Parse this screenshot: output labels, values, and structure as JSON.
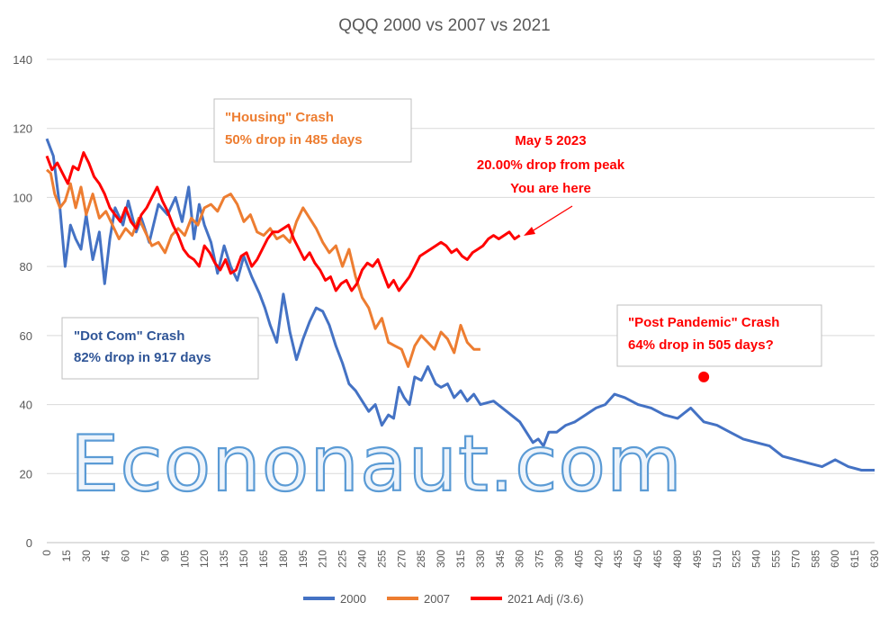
{
  "watermark": "Econonaut.com",
  "chart_data": {
    "type": "line",
    "title": "QQQ 2000 vs 2007 vs 2021",
    "xlabel": "",
    "ylabel": "",
    "xlim": [
      0,
      630
    ],
    "ylim": [
      0,
      140
    ],
    "yticks": [
      0,
      20,
      40,
      60,
      80,
      100,
      120,
      140
    ],
    "xticks": [
      0,
      15,
      30,
      45,
      60,
      75,
      90,
      105,
      120,
      135,
      150,
      165,
      180,
      195,
      210,
      225,
      240,
      255,
      270,
      285,
      300,
      315,
      330,
      345,
      360,
      375,
      390,
      405,
      420,
      435,
      450,
      465,
      480,
      495,
      510,
      525,
      540,
      555,
      570,
      585,
      600,
      615,
      630
    ],
    "grid": "horizontal",
    "legend": "bottom",
    "series": [
      {
        "name": "2000",
        "color": "#4472c4",
        "x": [
          0,
          5,
          10,
          14,
          18,
          22,
          26,
          30,
          35,
          40,
          44,
          48,
          52,
          58,
          62,
          68,
          72,
          78,
          85,
          92,
          98,
          103,
          108,
          112,
          116,
          120,
          125,
          130,
          135,
          140,
          145,
          150,
          156,
          162,
          166,
          170,
          175,
          180,
          185,
          190,
          195,
          200,
          205,
          210,
          215,
          220,
          225,
          230,
          235,
          240,
          245,
          250,
          255,
          260,
          264,
          268,
          272,
          276,
          280,
          285,
          290,
          296,
          300,
          305,
          310,
          315,
          320,
          325,
          330,
          340,
          350,
          360,
          370,
          374,
          378,
          382,
          388,
          395,
          402,
          410,
          418,
          425,
          432,
          440,
          450,
          460,
          470,
          480,
          490,
          500,
          510,
          520,
          530,
          540,
          550,
          560,
          570,
          580,
          590,
          600,
          610,
          620,
          630
        ],
        "y": [
          117,
          112,
          97,
          80,
          92,
          88,
          85,
          95,
          82,
          90,
          75,
          88,
          97,
          92,
          99,
          90,
          94,
          87,
          98,
          95,
          100,
          93,
          103,
          88,
          98,
          92,
          87,
          78,
          86,
          80,
          76,
          83,
          77,
          72,
          68,
          63,
          58,
          72,
          61,
          53,
          59,
          64,
          68,
          67,
          63,
          57,
          52,
          46,
          44,
          41,
          38,
          40,
          34,
          37,
          36,
          45,
          42,
          40,
          48,
          47,
          51,
          46,
          45,
          46,
          42,
          44,
          41,
          43,
          40,
          41,
          38,
          35,
          29,
          30,
          28,
          32,
          32,
          34,
          35,
          37,
          39,
          40,
          43,
          42,
          40,
          39,
          37,
          36,
          39,
          35,
          34,
          32,
          30,
          29,
          28,
          25,
          24,
          23,
          22,
          24,
          22,
          21,
          21
        ]
      },
      {
        "name": "2007",
        "color": "#ed7d31",
        "x": [
          0,
          3,
          6,
          10,
          14,
          18,
          22,
          26,
          30,
          35,
          40,
          45,
          50,
          55,
          60,
          65,
          70,
          75,
          80,
          85,
          90,
          95,
          100,
          105,
          110,
          115,
          120,
          125,
          130,
          135,
          140,
          145,
          150,
          155,
          160,
          165,
          170,
          175,
          180,
          185,
          190,
          195,
          200,
          205,
          210,
          215,
          220,
          225,
          230,
          235,
          240,
          245,
          250,
          255,
          260,
          265,
          270,
          275,
          280,
          285,
          290,
          295,
          300,
          305,
          310,
          315,
          320,
          325,
          330
        ],
        "y": [
          108,
          107,
          101,
          97,
          99,
          104,
          97,
          103,
          95,
          101,
          94,
          96,
          92,
          88,
          91,
          89,
          94,
          90,
          86,
          87,
          84,
          89,
          91,
          89,
          94,
          92,
          97,
          98,
          96,
          100,
          101,
          98,
          93,
          95,
          90,
          89,
          91,
          88,
          89,
          87,
          93,
          97,
          94,
          91,
          87,
          84,
          86,
          80,
          85,
          77,
          71,
          68,
          62,
          65,
          58,
          57,
          56,
          51,
          57,
          60,
          58,
          56,
          61,
          59,
          55,
          63,
          58,
          56,
          56
        ]
      },
      {
        "name": "2021 Adj (/3.6)",
        "color": "#ff0000",
        "x": [
          0,
          4,
          8,
          12,
          16,
          20,
          24,
          28,
          32,
          36,
          40,
          44,
          48,
          52,
          56,
          60,
          64,
          68,
          72,
          76,
          80,
          84,
          88,
          92,
          96,
          100,
          104,
          108,
          112,
          116,
          120,
          124,
          128,
          132,
          136,
          140,
          144,
          148,
          152,
          156,
          160,
          164,
          168,
          172,
          176,
          180,
          184,
          188,
          192,
          196,
          200,
          204,
          208,
          212,
          216,
          220,
          224,
          228,
          232,
          236,
          240,
          244,
          248,
          252,
          256,
          260,
          264,
          268,
          272,
          276,
          280,
          284,
          288,
          292,
          296,
          300,
          304,
          308,
          312,
          316,
          320,
          324,
          328,
          332,
          336,
          340,
          344,
          348,
          352,
          356,
          360
        ],
        "y": [
          112,
          108,
          110,
          107,
          104,
          109,
          108,
          113,
          110,
          106,
          104,
          101,
          97,
          95,
          93,
          97,
          93,
          91,
          95,
          97,
          100,
          103,
          99,
          96,
          92,
          89,
          85,
          83,
          82,
          80,
          86,
          84,
          81,
          79,
          82,
          78,
          79,
          83,
          84,
          80,
          82,
          85,
          88,
          90,
          90,
          91,
          92,
          88,
          85,
          82,
          84,
          81,
          79,
          76,
          77,
          73,
          75,
          76,
          73,
          75,
          79,
          81,
          80,
          82,
          78,
          74,
          76,
          73,
          75,
          77,
          80,
          83,
          84,
          85,
          86,
          87,
          86,
          84,
          85,
          83,
          82,
          84,
          85,
          86,
          88,
          89,
          88,
          89,
          90,
          88,
          89
        ]
      }
    ],
    "point": {
      "x": 500,
      "y": 48,
      "color": "#ff0000"
    },
    "annotations": {
      "dotcom": {
        "line1": "\"Dot Com\" Crash",
        "line2": "82% drop in 917 days",
        "color": "#2f5597"
      },
      "housing": {
        "line1": "\"Housing\" Crash",
        "line2": "50% drop in 485 days",
        "color": "#ed7d31"
      },
      "pandemic": {
        "line1": "\"Post Pandemic\" Crash",
        "line2": "64% drop in 505 days?",
        "color": "#ff0000"
      },
      "current": {
        "line1": "May 5 2023",
        "line2": "20.00% drop from peak",
        "line3": "You are here",
        "color": "#ff0000"
      }
    }
  }
}
